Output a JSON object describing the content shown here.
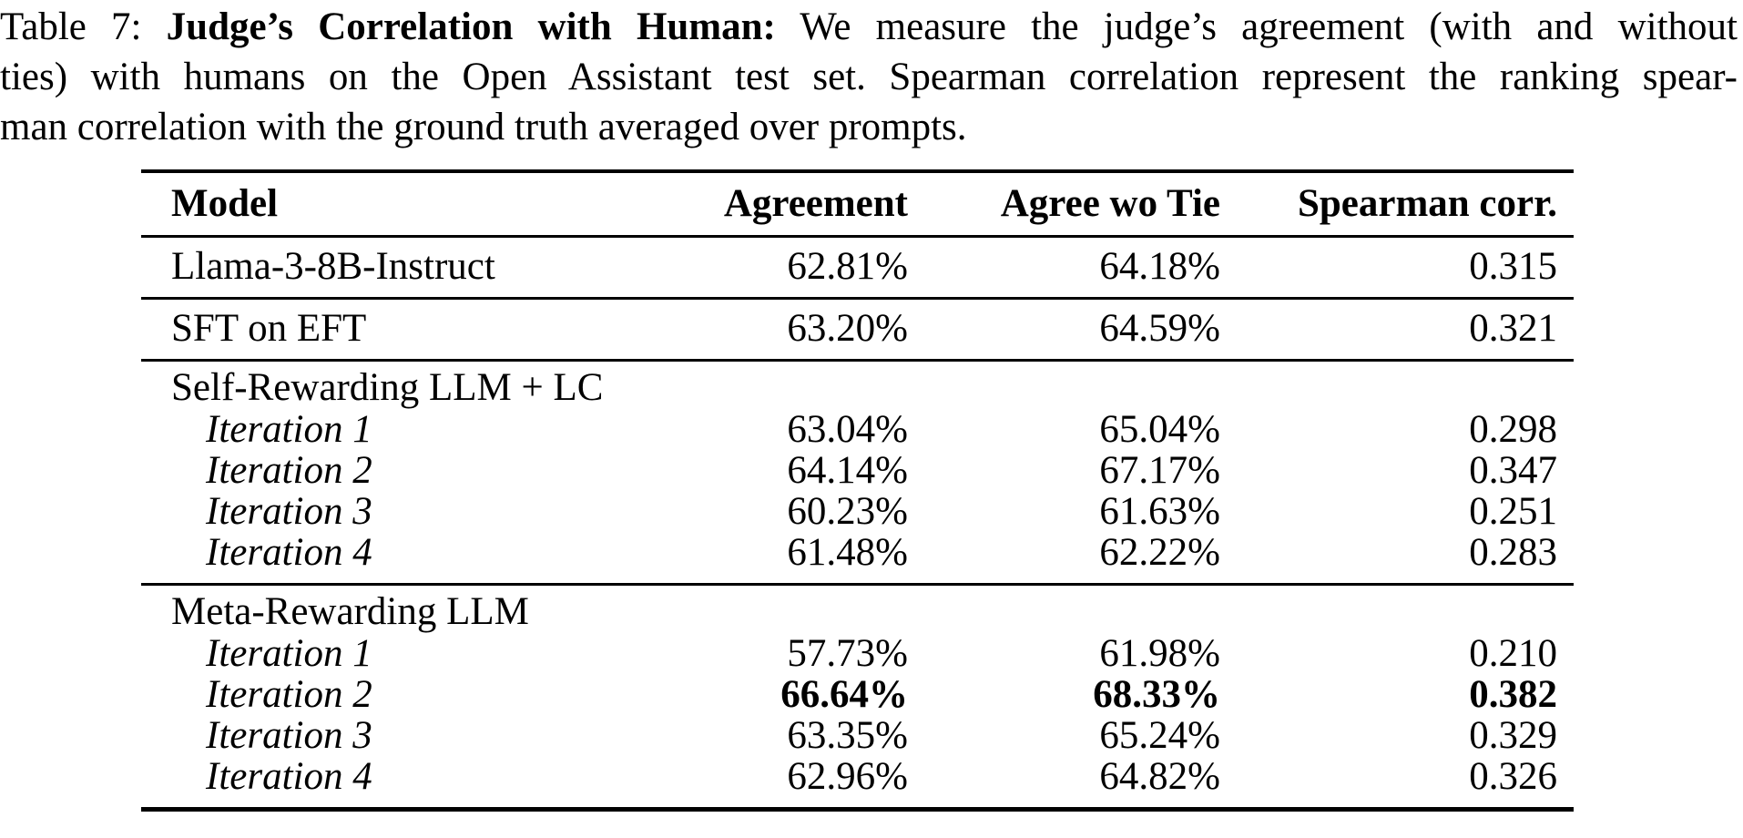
{
  "caption": {
    "line1_prefix": "Table 7: ",
    "line1_bold": "Judge’s Correlation with Human:",
    "line1_rest": " We measure the judge’s agreement (with and without",
    "line2": "ties) with humans on the Open Assistant test set. Spearman correlation represent the ranking spear-",
    "line3": "man correlation with the ground truth averaged over prompts."
  },
  "table": {
    "columns": [
      "Model",
      "Agreement",
      "Agree wo Tie",
      "Spearman corr."
    ],
    "rows": [
      {
        "model": "Llama-3-8B-Instruct",
        "agreement": "62.81%",
        "agree_wo_tie": "64.18%",
        "spearman": "0.315"
      },
      {
        "model": "SFT on EFT",
        "agreement": "63.20%",
        "agree_wo_tie": "64.59%",
        "spearman": "0.321"
      },
      {
        "group": "Self-Rewarding LLM + LC"
      },
      {
        "model": "Iteration 1",
        "agreement": "63.04%",
        "agree_wo_tie": "65.04%",
        "spearman": "0.298"
      },
      {
        "model": "Iteration 2",
        "agreement": "64.14%",
        "agree_wo_tie": "67.17%",
        "spearman": "0.347"
      },
      {
        "model": "Iteration 3",
        "agreement": "60.23%",
        "agree_wo_tie": "61.63%",
        "spearman": "0.251"
      },
      {
        "model": "Iteration 4",
        "agreement": "61.48%",
        "agree_wo_tie": "62.22%",
        "spearman": "0.283"
      },
      {
        "group": "Meta-Rewarding LLM"
      },
      {
        "model": "Iteration 1",
        "agreement": "57.73%",
        "agree_wo_tie": "61.98%",
        "spearman": "0.210"
      },
      {
        "model": "Iteration 2",
        "agreement": "66.64%",
        "agree_wo_tie": "68.33%",
        "spearman": "0.382",
        "emphasis": true
      },
      {
        "model": "Iteration 3",
        "agreement": "63.35%",
        "agree_wo_tie": "65.24%",
        "spearman": "0.329"
      },
      {
        "model": "Iteration 4",
        "agreement": "62.96%",
        "agree_wo_tie": "64.82%",
        "spearman": "0.326"
      }
    ]
  },
  "colors": {
    "text": "#000000",
    "background": "#ffffff"
  }
}
